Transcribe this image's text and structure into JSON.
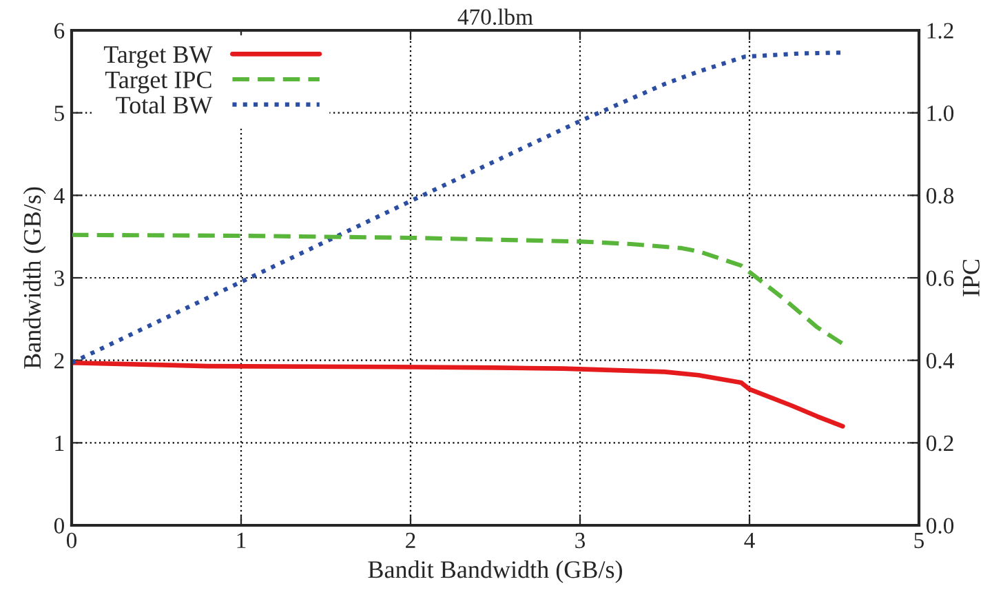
{
  "chart_data": {
    "type": "line",
    "title": "470.lbm",
    "xlabel": "Bandit Bandwidth (GB/s)",
    "ylabel": "Bandwidth (GB/s)",
    "y2label": "IPC",
    "xlim": [
      0,
      5
    ],
    "xticks": [
      0,
      1,
      2,
      3,
      4,
      5
    ],
    "ylim": [
      0,
      6
    ],
    "yticks": [
      0,
      1,
      2,
      3,
      4,
      5,
      6
    ],
    "y2lim": [
      0,
      1.2
    ],
    "y2ticks": [
      {
        "value": 0,
        "label": "0.0"
      },
      {
        "value": 0.2,
        "label": "0.2"
      },
      {
        "value": 0.4,
        "label": "0.4"
      },
      {
        "value": 0.6,
        "label": "0.6"
      },
      {
        "value": 0.8,
        "label": "0.8"
      },
      {
        "value": 1.0,
        "label": "1.0"
      },
      {
        "value": 1.2,
        "label": "1.2"
      }
    ],
    "grid": true,
    "legend": "top left",
    "marker": "none",
    "series": [
      {
        "name": "Target BW",
        "color": "#e41a1c",
        "line_style": "solid",
        "x": [
          0,
          0.8,
          1.9,
          2.5,
          2.9,
          3.5,
          3.7,
          3.95,
          4.0,
          4.25,
          4.4,
          4.55
        ],
        "values": [
          1.97,
          1.93,
          1.92,
          1.91,
          1.9,
          1.86,
          1.82,
          1.73,
          1.65,
          1.45,
          1.32,
          1.2
        ]
      },
      {
        "name": "Target IPC",
        "color": "#5ab63a",
        "line_style": "dashed",
        "axis": "y2",
        "x": [
          0,
          1.0,
          2.0,
          3.0,
          3.3,
          3.6,
          3.7,
          3.95,
          4.2,
          4.4,
          4.55
        ],
        "values": [
          0.704,
          0.702,
          0.697,
          0.688,
          0.682,
          0.672,
          0.664,
          0.63,
          0.55,
          0.48,
          0.44
        ]
      },
      {
        "name": "Total BW",
        "color": "#2b4ea2",
        "line_style": "dotted",
        "x": [
          0,
          1.0,
          2.0,
          3.0,
          3.5,
          3.7,
          3.97,
          4.3,
          4.55
        ],
        "values": [
          1.97,
          2.95,
          3.93,
          4.9,
          5.35,
          5.5,
          5.68,
          5.72,
          5.73
        ]
      }
    ]
  }
}
